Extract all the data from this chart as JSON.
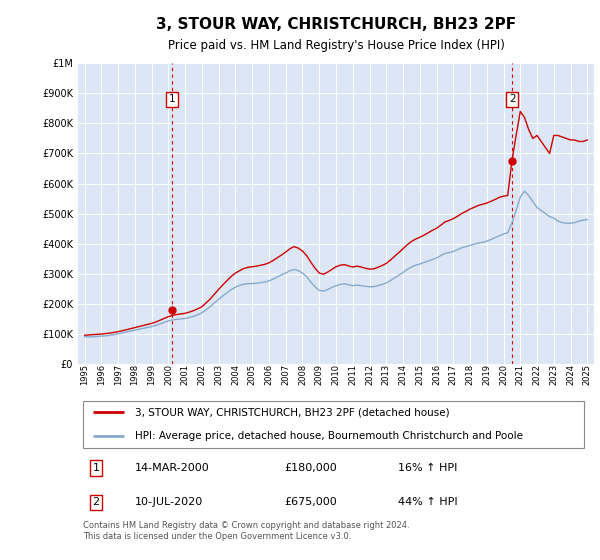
{
  "title": "3, STOUR WAY, CHRISTCHURCH, BH23 2PF",
  "subtitle": "Price paid vs. HM Land Registry's House Price Index (HPI)",
  "plot_bg_color": "#dce6f4",
  "grid_color": "#ffffff",
  "ylim": [
    0,
    1000000
  ],
  "yticks": [
    0,
    100000,
    200000,
    300000,
    400000,
    500000,
    600000,
    700000,
    800000,
    900000,
    1000000
  ],
  "ytick_labels": [
    "£0",
    "£100K",
    "£200K",
    "£300K",
    "£400K",
    "£500K",
    "£600K",
    "£700K",
    "£800K",
    "£900K",
    "£1M"
  ],
  "xlim_start": 1994.6,
  "xlim_end": 2025.4,
  "xticks": [
    1995,
    1996,
    1997,
    1998,
    1999,
    2000,
    2001,
    2002,
    2003,
    2004,
    2005,
    2006,
    2007,
    2008,
    2009,
    2010,
    2011,
    2012,
    2013,
    2014,
    2015,
    2016,
    2017,
    2018,
    2019,
    2020,
    2021,
    2022,
    2023,
    2024,
    2025
  ],
  "sale1_x": 2000.2,
  "sale1_y": 180000,
  "sale1_label": "1",
  "sale1_date": "14-MAR-2000",
  "sale1_price": "£180,000",
  "sale1_hpi": "16% ↑ HPI",
  "sale2_x": 2020.53,
  "sale2_y": 675000,
  "sale2_label": "2",
  "sale2_date": "10-JUL-2020",
  "sale2_price": "£675,000",
  "sale2_hpi": "44% ↑ HPI",
  "legend_line1": "3, STOUR WAY, CHRISTCHURCH, BH23 2PF (detached house)",
  "legend_line2": "HPI: Average price, detached house, Bournemouth Christchurch and Poole",
  "footer": "Contains HM Land Registry data © Crown copyright and database right 2024.\nThis data is licensed under the Open Government Licence v3.0.",
  "line_color_red": "#cc0000",
  "line_color_blue": "#88aacc",
  "vline_color": "#cc0000",
  "hpi_data_x": [
    1995.0,
    1995.25,
    1995.5,
    1995.75,
    1996.0,
    1996.25,
    1996.5,
    1996.75,
    1997.0,
    1997.25,
    1997.5,
    1997.75,
    1998.0,
    1998.25,
    1998.5,
    1998.75,
    1999.0,
    1999.25,
    1999.5,
    1999.75,
    2000.0,
    2000.25,
    2000.5,
    2000.75,
    2001.0,
    2001.25,
    2001.5,
    2001.75,
    2002.0,
    2002.25,
    2002.5,
    2002.75,
    2003.0,
    2003.25,
    2003.5,
    2003.75,
    2004.0,
    2004.25,
    2004.5,
    2004.75,
    2005.0,
    2005.25,
    2005.5,
    2005.75,
    2006.0,
    2006.25,
    2006.5,
    2006.75,
    2007.0,
    2007.25,
    2007.5,
    2007.75,
    2008.0,
    2008.25,
    2008.5,
    2008.75,
    2009.0,
    2009.25,
    2009.5,
    2009.75,
    2010.0,
    2010.25,
    2010.5,
    2010.75,
    2011.0,
    2011.25,
    2011.5,
    2011.75,
    2012.0,
    2012.25,
    2012.5,
    2012.75,
    2013.0,
    2013.25,
    2013.5,
    2013.75,
    2014.0,
    2014.25,
    2014.5,
    2014.75,
    2015.0,
    2015.25,
    2015.5,
    2015.75,
    2016.0,
    2016.25,
    2016.5,
    2016.75,
    2017.0,
    2017.25,
    2017.5,
    2017.75,
    2018.0,
    2018.25,
    2018.5,
    2018.75,
    2019.0,
    2019.25,
    2019.5,
    2019.75,
    2020.0,
    2020.25,
    2020.5,
    2020.75,
    2021.0,
    2021.25,
    2021.5,
    2021.75,
    2022.0,
    2022.25,
    2022.5,
    2022.75,
    2023.0,
    2023.25,
    2023.5,
    2023.75,
    2024.0,
    2024.25,
    2024.5,
    2024.75,
    2025.0
  ],
  "hpi_data_y": [
    90000,
    89500,
    90000,
    91000,
    92000,
    93000,
    95000,
    97000,
    100000,
    103000,
    106000,
    109000,
    112000,
    115000,
    118000,
    121000,
    124000,
    128000,
    133000,
    138000,
    143000,
    146000,
    148000,
    149000,
    151000,
    154000,
    158000,
    163000,
    170000,
    180000,
    191000,
    203000,
    215000,
    226000,
    237000,
    247000,
    255000,
    261000,
    265000,
    267000,
    267000,
    268000,
    270000,
    272000,
    276000,
    282000,
    289000,
    296000,
    302000,
    310000,
    314000,
    310000,
    302000,
    290000,
    272000,
    256000,
    244000,
    242000,
    247000,
    254000,
    260000,
    264000,
    266000,
    263000,
    260000,
    262000,
    260000,
    258000,
    256000,
    257000,
    260000,
    264000,
    269000,
    277000,
    286000,
    295000,
    304000,
    314000,
    322000,
    328000,
    332000,
    337000,
    342000,
    347000,
    352000,
    360000,
    367000,
    370000,
    374000,
    380000,
    386000,
    390000,
    394000,
    398000,
    402000,
    404000,
    408000,
    414000,
    420000,
    426000,
    432000,
    436000,
    469000,
    510000,
    555000,
    575000,
    560000,
    540000,
    520000,
    510000,
    500000,
    490000,
    485000,
    475000,
    470000,
    468000,
    468000,
    470000,
    475000,
    478000,
    480000
  ],
  "price_data_x": [
    1995.0,
    1995.25,
    1995.5,
    1995.75,
    1996.0,
    1996.25,
    1996.5,
    1996.75,
    1997.0,
    1997.25,
    1997.5,
    1997.75,
    1998.0,
    1998.25,
    1998.5,
    1998.75,
    1999.0,
    1999.25,
    1999.5,
    1999.75,
    2000.0,
    2000.25,
    2000.5,
    2000.75,
    2001.0,
    2001.25,
    2001.5,
    2001.75,
    2002.0,
    2002.25,
    2002.5,
    2002.75,
    2003.0,
    2003.25,
    2003.5,
    2003.75,
    2004.0,
    2004.25,
    2004.5,
    2004.75,
    2005.0,
    2005.25,
    2005.5,
    2005.75,
    2006.0,
    2006.25,
    2006.5,
    2006.75,
    2007.0,
    2007.25,
    2007.5,
    2007.75,
    2008.0,
    2008.25,
    2008.5,
    2008.75,
    2009.0,
    2009.25,
    2009.5,
    2009.75,
    2010.0,
    2010.25,
    2010.5,
    2010.75,
    2011.0,
    2011.25,
    2011.5,
    2011.75,
    2012.0,
    2012.25,
    2012.5,
    2012.75,
    2013.0,
    2013.25,
    2013.5,
    2013.75,
    2014.0,
    2014.25,
    2014.5,
    2014.75,
    2015.0,
    2015.25,
    2015.5,
    2015.75,
    2016.0,
    2016.25,
    2016.5,
    2016.75,
    2017.0,
    2017.25,
    2017.5,
    2017.75,
    2018.0,
    2018.25,
    2018.5,
    2018.75,
    2019.0,
    2019.25,
    2019.5,
    2019.75,
    2020.0,
    2020.25,
    2020.5,
    2020.75,
    2021.0,
    2021.25,
    2021.5,
    2021.75,
    2022.0,
    2022.25,
    2022.5,
    2022.75,
    2023.0,
    2023.25,
    2023.5,
    2023.75,
    2024.0,
    2024.25,
    2024.5,
    2024.75,
    2025.0
  ],
  "price_data_y": [
    95000,
    96000,
    97000,
    98000,
    99000,
    100500,
    102000,
    104500,
    107000,
    110000,
    113500,
    117000,
    120500,
    124000,
    127500,
    131000,
    134500,
    139000,
    145000,
    151000,
    157000,
    161000,
    164000,
    166000,
    168000,
    172000,
    177000,
    183000,
    190000,
    203000,
    216000,
    232000,
    248000,
    263000,
    277000,
    291000,
    302000,
    310000,
    317000,
    321000,
    323000,
    325000,
    328000,
    331000,
    336000,
    344000,
    353000,
    362000,
    372000,
    383000,
    390000,
    385000,
    375000,
    360000,
    338000,
    318000,
    302000,
    298000,
    305000,
    314000,
    323000,
    328000,
    330000,
    326000,
    322000,
    325000,
    322000,
    318000,
    315000,
    316000,
    321000,
    327000,
    334000,
    345000,
    358000,
    370000,
    383000,
    396000,
    407000,
    415000,
    421000,
    428000,
    436000,
    444000,
    451000,
    461000,
    472000,
    477000,
    483000,
    491000,
    500000,
    507000,
    515000,
    521000,
    527000,
    531000,
    535000,
    541000,
    547000,
    554000,
    558000,
    560000,
    675000,
    760000,
    840000,
    820000,
    780000,
    750000,
    760000,
    740000,
    720000,
    700000,
    760000,
    760000,
    755000,
    750000,
    745000,
    745000,
    740000,
    740000,
    745000
  ]
}
